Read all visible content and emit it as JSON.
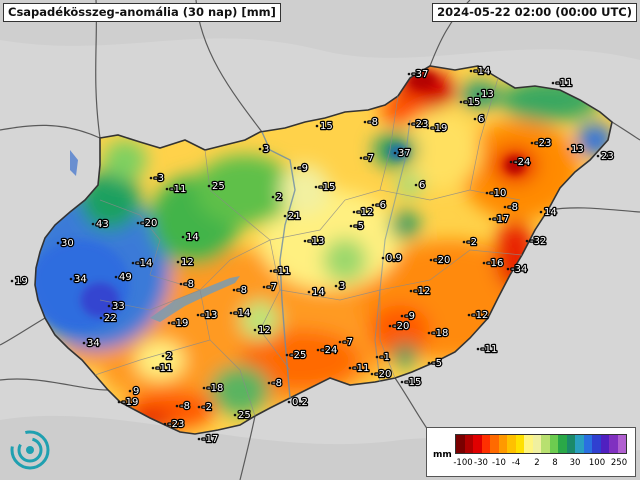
{
  "header": {
    "title": "Csapadékösszeg-anomália (30 nap) [mm]",
    "timestamp": "2024-05-22 02:00 (00:00 UTC)"
  },
  "legend": {
    "unit": "mm",
    "colors": [
      "#7a0000",
      "#b00000",
      "#e00000",
      "#ff3000",
      "#ff6a00",
      "#ff9900",
      "#ffc000",
      "#ffe000",
      "#fff580",
      "#f0f0a0",
      "#b8e070",
      "#6ccc50",
      "#2aa848",
      "#1b8a6a",
      "#2aa0c0",
      "#2a70e0",
      "#3040d0",
      "#5020c0",
      "#8030c0",
      "#b060d0"
    ],
    "ticks": [
      "-100",
      "-30",
      "-10",
      "-4",
      "2",
      "8",
      "30",
      "100",
      "250"
    ]
  },
  "labels": [
    {
      "text": "-37"
    },
    {
      "text": "-14"
    },
    {
      "text": "-11"
    },
    {
      "text": "13"
    },
    {
      "text": "-15"
    },
    {
      "text": "6"
    },
    {
      "text": "-23"
    },
    {
      "text": "-19"
    },
    {
      "text": "-8"
    },
    {
      "text": "15"
    },
    {
      "text": "-23"
    },
    {
      "text": "13"
    },
    {
      "text": "23"
    },
    {
      "text": "-24"
    },
    {
      "text": "37"
    },
    {
      "text": "-7"
    },
    {
      "text": "3"
    },
    {
      "text": "-9"
    },
    {
      "text": "-3"
    },
    {
      "text": "-11"
    },
    {
      "text": "25"
    },
    {
      "text": "-15"
    },
    {
      "text": "6"
    },
    {
      "text": "-10"
    },
    {
      "text": "-8"
    },
    {
      "text": "-17"
    },
    {
      "text": "14"
    },
    {
      "text": "2"
    },
    {
      "text": "-6"
    },
    {
      "text": "-12"
    },
    {
      "text": "21"
    },
    {
      "text": "43"
    },
    {
      "text": "-20"
    },
    {
      "text": "-5"
    },
    {
      "text": "30"
    },
    {
      "text": "14"
    },
    {
      "text": "-13"
    },
    {
      "text": "-2"
    },
    {
      "text": "-32"
    },
    {
      "text": "-16"
    },
    {
      "text": "-34"
    },
    {
      "text": "-20"
    },
    {
      "text": "0.9"
    },
    {
      "text": "12"
    },
    {
      "text": "-11"
    },
    {
      "text": "19"
    },
    {
      "text": "34"
    },
    {
      "text": "49"
    },
    {
      "text": "-14"
    },
    {
      "text": "-8"
    },
    {
      "text": "-7"
    },
    {
      "text": "14"
    },
    {
      "text": "3"
    },
    {
      "text": "-12"
    },
    {
      "text": "33"
    },
    {
      "text": "22"
    },
    {
      "text": "-19"
    },
    {
      "text": "-13"
    },
    {
      "text": "-14"
    },
    {
      "text": "-8"
    },
    {
      "text": "-12"
    },
    {
      "text": "-9"
    },
    {
      "text": "-20"
    },
    {
      "text": "-18"
    },
    {
      "text": "12"
    },
    {
      "text": "34"
    },
    {
      "text": "-7"
    },
    {
      "text": "-25"
    },
    {
      "text": "-24"
    },
    {
      "text": "-11"
    },
    {
      "text": "2"
    },
    {
      "text": "-1"
    },
    {
      "text": "-5"
    },
    {
      "text": "-11"
    },
    {
      "text": "-20"
    },
    {
      "text": "-15"
    },
    {
      "text": "-8"
    },
    {
      "text": "9"
    },
    {
      "text": "-18"
    },
    {
      "text": "-19"
    },
    {
      "text": "-8"
    },
    {
      "text": "-2"
    },
    {
      "text": "0.2"
    },
    {
      "text": "25"
    },
    {
      "text": "-23"
    },
    {
      "text": "-17"
    },
    {
      "text": "-11"
    }
  ]
}
